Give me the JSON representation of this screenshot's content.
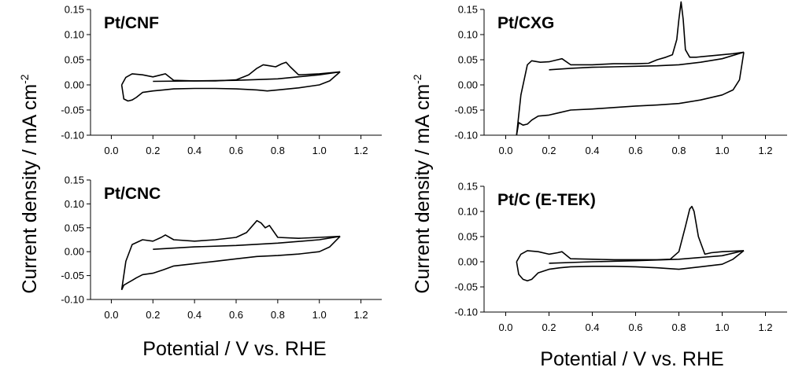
{
  "figure": {
    "ylabel_left": "Current density / mA cm",
    "ylabel_right": "Current density / mA cm",
    "ylabel_sup": "-2",
    "xlabel_left": "Potential / V vs. RHE",
    "xlabel_right": "Potential / V vs. RHE"
  },
  "chart_data": [
    {
      "type": "line",
      "title": "Pt/CNF",
      "xlim": [
        -0.1,
        1.3
      ],
      "ylim": [
        -0.1,
        0.15
      ],
      "xticks": [
        0.0,
        0.2,
        0.4,
        0.6,
        0.8,
        1.0,
        1.2
      ],
      "yticks": [
        -0.1,
        -0.05,
        0.0,
        0.05,
        0.1,
        0.15
      ],
      "xticklabels": [
        "0.0",
        "0.2",
        "0.4",
        "0.6",
        "0.8",
        "1.0",
        "1.2"
      ],
      "yticklabels": [
        "-0.10",
        "-0.05",
        "0.00",
        "0.05",
        "0.10",
        "0.15"
      ],
      "series": [
        {
          "x": [
            0.05,
            0.07,
            0.1,
            0.15,
            0.2,
            0.24,
            0.26,
            0.3,
            0.4,
            0.5,
            0.6,
            0.66,
            0.7,
            0.73,
            0.76,
            0.79,
            0.82,
            0.84,
            0.86,
            0.9,
            1.0,
            1.1
          ],
          "y": [
            0.0,
            0.015,
            0.022,
            0.02,
            0.016,
            0.02,
            0.022,
            0.009,
            0.008,
            0.008,
            0.01,
            0.02,
            0.033,
            0.04,
            0.038,
            0.036,
            0.042,
            0.045,
            0.036,
            0.02,
            0.022,
            0.026
          ]
        },
        {
          "x": [
            1.1,
            1.05,
            1.0,
            0.9,
            0.8,
            0.75,
            0.7,
            0.6,
            0.5,
            0.4,
            0.3,
            0.25,
            0.2,
            0.15,
            0.12,
            0.1,
            0.08,
            0.06,
            0.05
          ],
          "y": [
            0.026,
            0.008,
            0.0,
            -0.006,
            -0.01,
            -0.012,
            -0.01,
            -0.008,
            -0.007,
            -0.007,
            -0.008,
            -0.01,
            -0.012,
            -0.015,
            -0.025,
            -0.03,
            -0.032,
            -0.028,
            0.0
          ]
        },
        {
          "x": [
            0.2,
            0.4,
            0.6,
            0.8,
            1.0,
            1.1
          ],
          "y": [
            0.007,
            0.008,
            0.009,
            0.012,
            0.02,
            0.026
          ]
        }
      ]
    },
    {
      "type": "line",
      "title": "Pt/CXG",
      "xlim": [
        -0.1,
        1.3
      ],
      "ylim": [
        -0.1,
        0.15
      ],
      "xticks": [
        0.0,
        0.2,
        0.4,
        0.6,
        0.8,
        1.0,
        1.2
      ],
      "yticks": [
        -0.1,
        -0.05,
        0.0,
        0.05,
        0.1,
        0.15
      ],
      "xticklabels": [
        "0.0",
        "0.2",
        "0.4",
        "0.6",
        "0.8",
        "1.0",
        "1.2"
      ],
      "yticklabels": [
        "-0.10",
        "-0.05",
        "0.00",
        "0.05",
        "0.10",
        "0.15"
      ],
      "series": [
        {
          "x": [
            0.05,
            0.07,
            0.1,
            0.12,
            0.16,
            0.2,
            0.24,
            0.26,
            0.3,
            0.4,
            0.5,
            0.6,
            0.66,
            0.7,
            0.74,
            0.77,
            0.79,
            0.8,
            0.81,
            0.82,
            0.83,
            0.85,
            0.88,
            0.95,
            1.05,
            1.1
          ],
          "y": [
            -0.1,
            -0.02,
            0.04,
            0.048,
            0.045,
            0.046,
            0.05,
            0.052,
            0.04,
            0.04,
            0.042,
            0.042,
            0.043,
            0.05,
            0.055,
            0.06,
            0.09,
            0.13,
            0.165,
            0.13,
            0.07,
            0.055,
            0.055,
            0.058,
            0.062,
            0.065
          ]
        },
        {
          "x": [
            1.1,
            1.08,
            1.05,
            1.0,
            0.9,
            0.8,
            0.7,
            0.6,
            0.5,
            0.4,
            0.3,
            0.25,
            0.2,
            0.15,
            0.12,
            0.1,
            0.08,
            0.06,
            0.05
          ],
          "y": [
            0.065,
            0.01,
            -0.01,
            -0.02,
            -0.03,
            -0.037,
            -0.04,
            -0.042,
            -0.045,
            -0.048,
            -0.05,
            -0.055,
            -0.06,
            -0.062,
            -0.07,
            -0.078,
            -0.08,
            -0.075,
            -0.1
          ]
        },
        {
          "x": [
            0.2,
            0.3,
            0.4,
            0.5,
            0.6,
            0.7,
            0.8,
            0.9,
            1.0,
            1.1
          ],
          "y": [
            0.03,
            0.033,
            0.035,
            0.036,
            0.037,
            0.038,
            0.04,
            0.045,
            0.052,
            0.065
          ]
        }
      ]
    },
    {
      "type": "line",
      "title": "Pt/CNC",
      "xlim": [
        -0.1,
        1.3
      ],
      "ylim": [
        -0.1,
        0.15
      ],
      "xticks": [
        0.0,
        0.2,
        0.4,
        0.6,
        0.8,
        1.0,
        1.2
      ],
      "yticks": [
        -0.1,
        -0.05,
        0.0,
        0.05,
        0.1,
        0.15
      ],
      "xticklabels": [
        "0.0",
        "0.2",
        "0.4",
        "0.6",
        "0.8",
        "1.0",
        "1.2"
      ],
      "yticklabels": [
        "-0.10",
        "-0.05",
        "0.00",
        "0.05",
        "0.10",
        "0.15"
      ],
      "series": [
        {
          "x": [
            0.05,
            0.07,
            0.1,
            0.15,
            0.2,
            0.24,
            0.26,
            0.3,
            0.4,
            0.5,
            0.6,
            0.65,
            0.68,
            0.7,
            0.72,
            0.74,
            0.76,
            0.8,
            0.9,
            1.0,
            1.1
          ],
          "y": [
            -0.08,
            -0.02,
            0.015,
            0.025,
            0.022,
            0.03,
            0.035,
            0.025,
            0.022,
            0.025,
            0.03,
            0.04,
            0.055,
            0.065,
            0.06,
            0.05,
            0.055,
            0.03,
            0.028,
            0.03,
            0.032
          ]
        },
        {
          "x": [
            1.1,
            1.05,
            1.0,
            0.9,
            0.8,
            0.7,
            0.6,
            0.5,
            0.4,
            0.3,
            0.25,
            0.2,
            0.15,
            0.12,
            0.1,
            0.08,
            0.06,
            0.05
          ],
          "y": [
            0.032,
            0.01,
            0.0,
            -0.005,
            -0.008,
            -0.01,
            -0.015,
            -0.02,
            -0.025,
            -0.03,
            -0.038,
            -0.045,
            -0.048,
            -0.055,
            -0.06,
            -0.065,
            -0.07,
            -0.08
          ]
        },
        {
          "x": [
            0.2,
            0.4,
            0.6,
            0.8,
            1.0,
            1.1
          ],
          "y": [
            0.005,
            0.01,
            0.013,
            0.018,
            0.025,
            0.032
          ]
        }
      ]
    },
    {
      "type": "line",
      "title": "Pt/C (E-TEK)",
      "xlim": [
        -0.1,
        1.3
      ],
      "ylim": [
        -0.1,
        0.15
      ],
      "xticks": [
        0.0,
        0.2,
        0.4,
        0.6,
        0.8,
        1.0,
        1.2
      ],
      "yticks": [
        -0.1,
        -0.05,
        0.0,
        0.05,
        0.1,
        0.15
      ],
      "xticklabels": [
        "0.0",
        "0.2",
        "0.4",
        "0.6",
        "0.8",
        "1.0",
        "1.2"
      ],
      "yticklabels": [
        "-0.10",
        "-0.05",
        "0.00",
        "0.05",
        "0.10",
        "0.15"
      ],
      "series": [
        {
          "x": [
            0.05,
            0.07,
            0.1,
            0.15,
            0.2,
            0.24,
            0.26,
            0.3,
            0.4,
            0.5,
            0.6,
            0.7,
            0.76,
            0.8,
            0.83,
            0.85,
            0.86,
            0.87,
            0.89,
            0.92,
            0.95,
            1.0,
            1.1
          ],
          "y": [
            0.0,
            0.015,
            0.022,
            0.02,
            0.015,
            0.018,
            0.02,
            0.006,
            0.005,
            0.004,
            0.004,
            0.004,
            0.005,
            0.02,
            0.07,
            0.105,
            0.11,
            0.1,
            0.05,
            0.015,
            0.018,
            0.02,
            0.022
          ]
        },
        {
          "x": [
            1.1,
            1.05,
            1.0,
            0.9,
            0.8,
            0.7,
            0.6,
            0.5,
            0.4,
            0.3,
            0.25,
            0.2,
            0.15,
            0.12,
            0.1,
            0.08,
            0.06,
            0.05
          ],
          "y": [
            0.022,
            0.005,
            -0.005,
            -0.01,
            -0.015,
            -0.012,
            -0.01,
            -0.009,
            -0.009,
            -0.01,
            -0.012,
            -0.015,
            -0.022,
            -0.035,
            -0.038,
            -0.035,
            -0.025,
            0.0
          ]
        },
        {
          "x": [
            0.2,
            0.4,
            0.6,
            0.8,
            1.0,
            1.1
          ],
          "y": [
            -0.003,
            0.0,
            0.002,
            0.005,
            0.012,
            0.022
          ]
        }
      ]
    }
  ]
}
